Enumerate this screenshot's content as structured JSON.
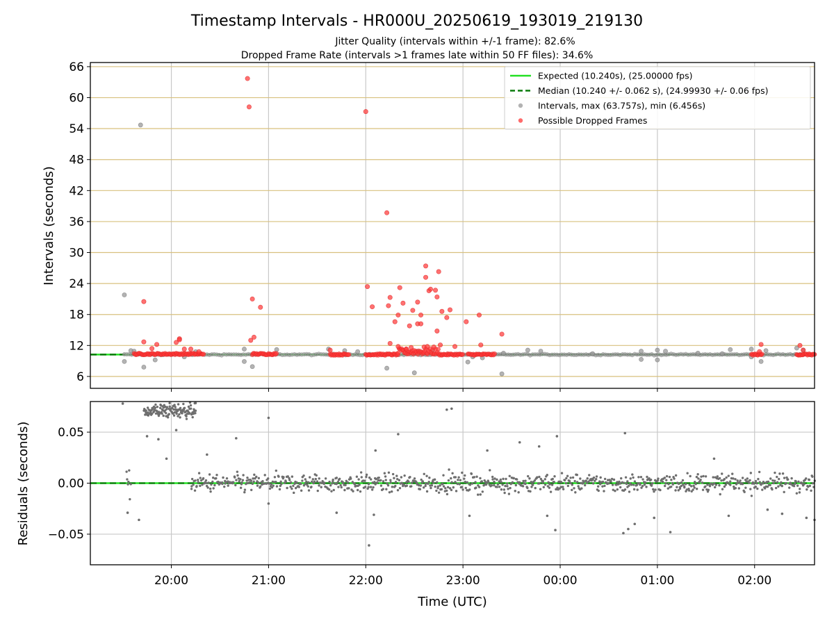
{
  "figure": {
    "title": "Timestamp Intervals - HR000U_20250619_193019_219130",
    "subtitle1": "Jitter Quality (intervals within +/-1 frame): 82.6%",
    "subtitle2": "Dropped Frame Rate (intervals >1 frames late within 50 FF files): 34.6%",
    "xlabel": "Time (UTC)"
  },
  "chart_data": [
    {
      "type": "scatter",
      "panel": "top",
      "ylabel": "Intervals (seconds)",
      "xlim": [
        "19:10",
        "02:37"
      ],
      "ylim": [
        3.7,
        66.8
      ],
      "yticks": [
        6,
        12,
        18,
        24,
        30,
        36,
        42,
        48,
        54,
        60,
        66
      ],
      "xticks": [
        "20:00",
        "21:00",
        "22:00",
        "23:00",
        "00:00",
        "01:00",
        "02:00"
      ],
      "hlines": {
        "expected": 10.24,
        "median": 10.24
      },
      "legend_position": "upper-right",
      "legend": [
        {
          "label": "Expected (10.240s), (25.00000 fps)",
          "kind": "line-solid",
          "color": "#22e022"
        },
        {
          "label": "Median (10.240 +/- 0.062 s), (24.99930 +/- 0.06 fps)",
          "kind": "line-dashed",
          "color": "#0a7a0a"
        },
        {
          "label": "Intervals, max (63.757s), min (6.456s)",
          "kind": "marker",
          "color": "#9a9a9a"
        },
        {
          "label": "Possible Dropped Frames",
          "kind": "marker",
          "color": "#ff3a3a"
        }
      ],
      "series": [
        {
          "name": "Intervals, max (63.757s), min (6.456s)",
          "color": "#9a9a9a",
          "points": [
            [
              "19:31",
              21.8
            ],
            [
              "19:31",
              8.9
            ],
            [
              "19:35",
              11.0
            ],
            [
              "19:37",
              10.9
            ],
            [
              "19:41",
              54.7
            ],
            [
              "19:43",
              7.8
            ],
            [
              "19:50",
              9.2
            ],
            [
              "20:08",
              9.8
            ],
            [
              "20:15",
              10.8
            ],
            [
              "20:45",
              11.3
            ],
            [
              "20:45",
              8.9
            ],
            [
              "20:50",
              7.9
            ],
            [
              "21:05",
              11.2
            ],
            [
              "21:37",
              11.3
            ],
            [
              "21:47",
              11.0
            ],
            [
              "21:55",
              10.8
            ],
            [
              "22:13",
              7.6
            ],
            [
              "22:24",
              11.0
            ],
            [
              "22:30",
              6.7
            ],
            [
              "22:32",
              10.9
            ],
            [
              "22:41",
              10.8
            ],
            [
              "23:03",
              8.8
            ],
            [
              "23:06",
              9.8
            ],
            [
              "23:12",
              9.6
            ],
            [
              "23:24",
              6.5
            ],
            [
              "23:25",
              10.5
            ],
            [
              "23:40",
              11.1
            ],
            [
              "23:48",
              10.9
            ],
            [
              "00:20",
              10.4
            ],
            [
              "00:50",
              10.9
            ],
            [
              "00:50",
              9.3
            ],
            [
              "01:00",
              11.1
            ],
            [
              "01:00",
              9.2
            ],
            [
              "01:05",
              10.9
            ],
            [
              "01:25",
              10.5
            ],
            [
              "01:40",
              10.4
            ],
            [
              "01:45",
              11.2
            ],
            [
              "01:58",
              11.3
            ],
            [
              "01:58",
              9.8
            ],
            [
              "02:04",
              8.9
            ],
            [
              "02:07",
              11.0
            ],
            [
              "02:26",
              11.5
            ],
            [
              "02:30",
              11.1
            ]
          ]
        },
        {
          "name": "Possible Dropped Frames",
          "color": "#ff3a3a",
          "bands": [
            {
              "x": [
                "19:37",
                "20:20"
              ],
              "y": [
                10.2,
                10.5
              ]
            },
            {
              "x": [
                "20:50",
                "21:05"
              ],
              "y": [
                10.2,
                10.5
              ]
            },
            {
              "x": [
                "21:38",
                "21:50"
              ],
              "y": [
                10.1,
                10.4
              ]
            },
            {
              "x": [
                "22:00",
                "22:20"
              ],
              "y": [
                10.1,
                10.4
              ]
            },
            {
              "x": [
                "22:20",
                "22:45"
              ],
              "y": [
                10.2,
                11.4
              ]
            },
            {
              "x": [
                "22:45",
                "23:00"
              ],
              "y": [
                10.1,
                10.4
              ]
            },
            {
              "x": [
                "23:03",
                "23:20"
              ],
              "y": [
                10.1,
                10.4
              ]
            },
            {
              "x": [
                "01:58",
                "02:05"
              ],
              "y": [
                10.1,
                10.4
              ]
            },
            {
              "x": [
                "02:26",
                "02:37"
              ],
              "y": [
                10.1,
                10.4
              ]
            }
          ],
          "points": [
            [
              "19:43",
              20.5
            ],
            [
              "19:43",
              12.7
            ],
            [
              "19:48",
              11.4
            ],
            [
              "19:51",
              12.2
            ],
            [
              "20:03",
              12.6
            ],
            [
              "20:05",
              13.3
            ],
            [
              "20:05",
              13.1
            ],
            [
              "20:08",
              11.3
            ],
            [
              "20:12",
              11.3
            ],
            [
              "20:17",
              10.8
            ],
            [
              "20:47",
              63.7
            ],
            [
              "20:48",
              58.2
            ],
            [
              "20:49",
              13.0
            ],
            [
              "20:50",
              21.0
            ],
            [
              "20:51",
              13.6
            ],
            [
              "20:55",
              19.4
            ],
            [
              "21:38",
              11.1
            ],
            [
              "22:00",
              57.3
            ],
            [
              "22:01",
              23.4
            ],
            [
              "22:04",
              19.5
            ],
            [
              "22:13",
              37.7
            ],
            [
              "22:14",
              19.7
            ],
            [
              "22:15",
              21.3
            ],
            [
              "22:15",
              12.4
            ],
            [
              "22:18",
              16.6
            ],
            [
              "22:20",
              11.8
            ],
            [
              "22:20",
              17.9
            ],
            [
              "22:21",
              23.2
            ],
            [
              "22:23",
              20.2
            ],
            [
              "22:25",
              11.3
            ],
            [
              "22:27",
              15.8
            ],
            [
              "22:28",
              11.6
            ],
            [
              "22:29",
              18.8
            ],
            [
              "22:32",
              20.4
            ],
            [
              "22:32",
              16.2
            ],
            [
              "22:34",
              17.9
            ],
            [
              "22:34",
              16.2
            ],
            [
              "22:36",
              11.7
            ],
            [
              "22:37",
              27.4
            ],
            [
              "22:37",
              25.2
            ],
            [
              "22:38",
              11.8
            ],
            [
              "22:39",
              22.6
            ],
            [
              "22:40",
              22.9
            ],
            [
              "22:42",
              11.7
            ],
            [
              "22:43",
              22.7
            ],
            [
              "22:44",
              21.4
            ],
            [
              "22:44",
              14.8
            ],
            [
              "22:45",
              26.3
            ],
            [
              "22:46",
              12.1
            ],
            [
              "22:47",
              18.6
            ],
            [
              "22:50",
              17.4
            ],
            [
              "22:52",
              18.9
            ],
            [
              "22:55",
              11.8
            ],
            [
              "23:02",
              16.6
            ],
            [
              "23:10",
              17.9
            ],
            [
              "23:11",
              12.1
            ],
            [
              "23:24",
              14.2
            ],
            [
              "02:04",
              12.2
            ],
            [
              "02:03",
              10.8
            ],
            [
              "02:28",
              12.0
            ],
            [
              "02:30",
              11.1
            ]
          ]
        }
      ]
    },
    {
      "type": "scatter",
      "panel": "bottom",
      "ylabel": "Residuals (seconds)",
      "xlim": [
        "19:10",
        "02:37"
      ],
      "ylim": [
        -0.08,
        0.08
      ],
      "yticks": [
        -0.05,
        0.0,
        0.05
      ],
      "ytick_labels": [
        "−0.05",
        "0.00",
        "0.05"
      ],
      "xticks": [
        "20:00",
        "21:00",
        "22:00",
        "23:00",
        "00:00",
        "01:00",
        "02:00"
      ],
      "hlines": {
        "expected": 0.0,
        "median": 0.0
      },
      "series": [
        {
          "name": "Residuals",
          "color": "#6e6e6e",
          "clusters": [
            {
              "x": [
                "19:32",
                "19:35"
              ],
              "y_center": 0.0,
              "y_spread": 0.012
            },
            {
              "x": [
                "19:43",
                "20:15"
              ],
              "y_center": 0.071,
              "y_spread": 0.007
            },
            {
              "x": [
                "20:12",
                "02:37"
              ],
              "y_center": 0.0,
              "y_spread": 0.009
            }
          ],
          "points": [
            [
              "19:30",
              0.078
            ],
            [
              "19:33",
              -0.029
            ],
            [
              "19:40",
              -0.036
            ],
            [
              "19:45",
              0.046
            ],
            [
              "19:48",
              0.068
            ],
            [
              "19:52",
              0.043
            ],
            [
              "19:57",
              0.024
            ],
            [
              "20:03",
              0.052
            ],
            [
              "20:22",
              0.028
            ],
            [
              "20:40",
              0.044
            ],
            [
              "21:00",
              -0.02
            ],
            [
              "21:00",
              0.064
            ],
            [
              "21:42",
              -0.029
            ],
            [
              "22:06",
              0.032
            ],
            [
              "22:02",
              -0.061
            ],
            [
              "22:05",
              -0.031
            ],
            [
              "22:20",
              0.048
            ],
            [
              "22:50",
              0.072
            ],
            [
              "22:53",
              0.073
            ],
            [
              "23:04",
              -0.032
            ],
            [
              "23:15",
              0.032
            ],
            [
              "23:35",
              0.04
            ],
            [
              "23:47",
              0.036
            ],
            [
              "23:52",
              -0.032
            ],
            [
              "23:57",
              -0.046
            ],
            [
              "23:58",
              0.046
            ],
            [
              "00:40",
              0.049
            ],
            [
              "00:39",
              -0.049
            ],
            [
              "00:42",
              -0.045
            ],
            [
              "00:46",
              -0.04
            ],
            [
              "00:58",
              -0.034
            ],
            [
              "01:08",
              -0.048
            ],
            [
              "01:35",
              0.024
            ],
            [
              "01:44",
              -0.032
            ],
            [
              "02:08",
              -0.026
            ],
            [
              "02:17",
              -0.03
            ],
            [
              "02:32",
              -0.034
            ],
            [
              "02:37",
              -0.036
            ]
          ]
        }
      ]
    }
  ]
}
